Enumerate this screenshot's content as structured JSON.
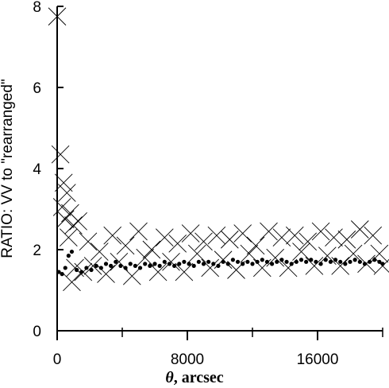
{
  "chart_data": {
    "type": "scatter",
    "title": "",
    "xlabel_symbol": "θ",
    "xlabel_text": ", arcsec",
    "ylabel": "RATIO: VV to \"rearranged\"",
    "xlim": [
      0,
      20000
    ],
    "ylim": [
      0,
      8
    ],
    "x_ticks": [
      0,
      8000,
      16000
    ],
    "x_minor_ticks": [
      4000,
      12000,
      20000
    ],
    "y_ticks": [
      0,
      2,
      4,
      6,
      8
    ],
    "grid": false,
    "legend": "none",
    "series": [
      {
        "marker": "cross",
        "color": "#000000",
        "points": [
          [
            0,
            7.75
          ],
          [
            200,
            4.35
          ],
          [
            400,
            3.65
          ],
          [
            600,
            3.4
          ],
          [
            800,
            2.9
          ],
          [
            1000,
            2.6
          ],
          [
            300,
            3.05
          ],
          [
            500,
            2.75
          ],
          [
            700,
            2.3
          ],
          [
            900,
            1.2
          ],
          [
            1100,
            1.55
          ],
          [
            1300,
            2.7
          ],
          [
            1600,
            1.45
          ],
          [
            1900,
            2.2
          ],
          [
            2200,
            1.6
          ],
          [
            2600,
            1.95
          ],
          [
            3000,
            1.4
          ],
          [
            3400,
            2.35
          ],
          [
            3800,
            1.7
          ],
          [
            4200,
            2.1
          ],
          [
            4600,
            1.35
          ],
          [
            5000,
            2.45
          ],
          [
            5400,
            1.8
          ],
          [
            5800,
            2.0
          ],
          [
            6200,
            1.45
          ],
          [
            6600,
            2.3
          ],
          [
            7000,
            1.7
          ],
          [
            7400,
            2.15
          ],
          [
            7800,
            1.45
          ],
          [
            8200,
            2.4
          ],
          [
            8600,
            1.9
          ],
          [
            9000,
            2.2
          ],
          [
            9400,
            1.55
          ],
          [
            9800,
            2.35
          ],
          [
            10200,
            1.75
          ],
          [
            10600,
            2.25
          ],
          [
            11000,
            1.5
          ],
          [
            11400,
            2.4
          ],
          [
            11800,
            1.9
          ],
          [
            12200,
            2.1
          ],
          [
            12600,
            1.55
          ],
          [
            13000,
            2.45
          ],
          [
            13400,
            1.8
          ],
          [
            13800,
            2.3
          ],
          [
            14200,
            1.55
          ],
          [
            14600,
            2.35
          ],
          [
            15000,
            1.95
          ],
          [
            15400,
            2.2
          ],
          [
            15800,
            1.6
          ],
          [
            16200,
            2.45
          ],
          [
            16600,
            1.85
          ],
          [
            17000,
            2.3
          ],
          [
            17400,
            1.6
          ],
          [
            17800,
            2.25
          ],
          [
            18200,
            1.9
          ],
          [
            18600,
            2.5
          ],
          [
            19000,
            1.65
          ],
          [
            19400,
            2.35
          ],
          [
            19800,
            1.9
          ],
          [
            20000,
            1.6
          ]
        ]
      },
      {
        "marker": "dot",
        "color": "#000000",
        "points": [
          [
            100,
            1.45
          ],
          [
            300,
            1.4
          ],
          [
            500,
            1.55
          ],
          [
            700,
            1.85
          ],
          [
            900,
            1.95
          ],
          [
            1200,
            1.5
          ],
          [
            1500,
            1.45
          ],
          [
            1800,
            1.55
          ],
          [
            2100,
            1.5
          ],
          [
            2400,
            1.6
          ],
          [
            2700,
            1.55
          ],
          [
            3000,
            1.65
          ],
          [
            3300,
            1.6
          ],
          [
            3600,
            1.7
          ],
          [
            3900,
            1.6
          ],
          [
            4200,
            1.55
          ],
          [
            4500,
            1.65
          ],
          [
            4800,
            1.6
          ],
          [
            5100,
            1.55
          ],
          [
            5400,
            1.65
          ],
          [
            5700,
            1.6
          ],
          [
            6000,
            1.65
          ],
          [
            6300,
            1.6
          ],
          [
            6600,
            1.7
          ],
          [
            6900,
            1.65
          ],
          [
            7200,
            1.6
          ],
          [
            7500,
            1.65
          ],
          [
            7800,
            1.7
          ],
          [
            8100,
            1.65
          ],
          [
            8400,
            1.6
          ],
          [
            8700,
            1.7
          ],
          [
            9000,
            1.65
          ],
          [
            9300,
            1.7
          ],
          [
            9600,
            1.65
          ],
          [
            9900,
            1.6
          ],
          [
            10200,
            1.7
          ],
          [
            10500,
            1.65
          ],
          [
            10800,
            1.75
          ],
          [
            11100,
            1.7
          ],
          [
            11400,
            1.65
          ],
          [
            11700,
            1.7
          ],
          [
            12000,
            1.65
          ],
          [
            12300,
            1.7
          ],
          [
            12600,
            1.75
          ],
          [
            12900,
            1.7
          ],
          [
            13200,
            1.65
          ],
          [
            13500,
            1.7
          ],
          [
            13800,
            1.75
          ],
          [
            14100,
            1.7
          ],
          [
            14400,
            1.65
          ],
          [
            14700,
            1.7
          ],
          [
            15000,
            1.75
          ],
          [
            15300,
            1.7
          ],
          [
            15600,
            1.75
          ],
          [
            15900,
            1.7
          ],
          [
            16200,
            1.65
          ],
          [
            16500,
            1.75
          ],
          [
            16800,
            1.7
          ],
          [
            17100,
            1.75
          ],
          [
            17400,
            1.7
          ],
          [
            17700,
            1.65
          ],
          [
            18000,
            1.7
          ],
          [
            18300,
            1.75
          ],
          [
            18600,
            1.7
          ],
          [
            18900,
            1.65
          ],
          [
            19200,
            1.7
          ],
          [
            19500,
            1.75
          ],
          [
            19800,
            1.7
          ],
          [
            20000,
            1.65
          ]
        ]
      }
    ]
  }
}
